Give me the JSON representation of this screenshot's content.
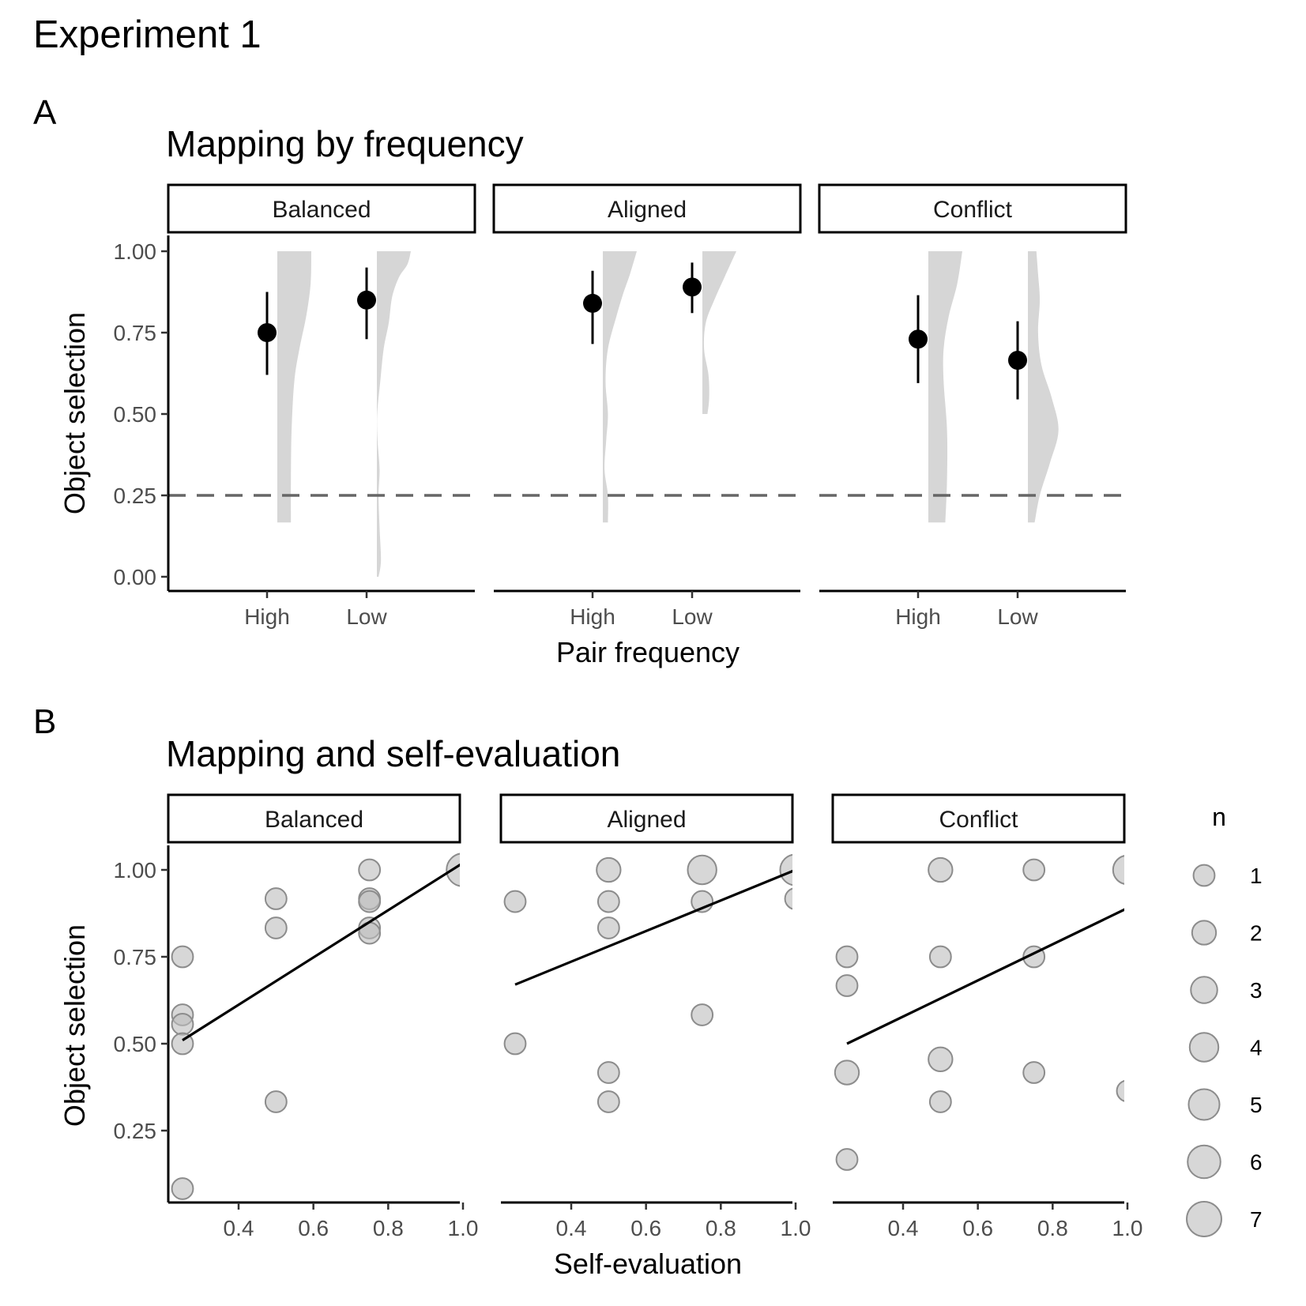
{
  "figure": {
    "title": "Experiment 1",
    "panel_a_tag": "A",
    "panel_b_tag": "B"
  },
  "colors": {
    "point": "#000000",
    "violin": "#d6d6d6",
    "bubble_fill": "#bdbdbd",
    "bubble_stroke": "#8c8c8c",
    "reference_line": "#666666"
  },
  "chart_data": [
    {
      "type": "pointrange+violin",
      "title": "Mapping by frequency",
      "xlabel": "Pair frequency",
      "ylabel": "Object selection",
      "ylim": [
        0,
        1
      ],
      "yticks": [
        "0.00",
        "0.25",
        "0.50",
        "0.75",
        "1.00"
      ],
      "categories": [
        "High",
        "Low"
      ],
      "reference_line": 0.25,
      "facets": [
        {
          "label": "Balanced",
          "points": [
            {
              "category": "High",
              "mean": 0.75,
              "lower": 0.62,
              "upper": 0.875
            },
            {
              "category": "Low",
              "mean": 0.85,
              "lower": 0.73,
              "upper": 0.95
            }
          ],
          "densities": [
            {
              "category": "High",
              "ymin": 0.167,
              "ymax": 1.0,
              "profile": [
                [
                  0.167,
                  0.4
                ],
                [
                  0.3,
                  0.4
                ],
                [
                  0.45,
                  0.42
                ],
                [
                  0.6,
                  0.5
                ],
                [
                  0.7,
                  0.65
                ],
                [
                  0.8,
                  0.85
                ],
                [
                  0.9,
                  0.98
                ],
                [
                  1.0,
                  1.0
                ]
              ]
            },
            {
              "category": "Low",
              "ymin": 0.0,
              "ymax": 1.0,
              "profile": [
                [
                  0.0,
                  0.05
                ],
                [
                  0.05,
                  0.12
                ],
                [
                  0.15,
                  0.08
                ],
                [
                  0.25,
                  0.05
                ],
                [
                  0.33,
                  0.08
                ],
                [
                  0.42,
                  0.02
                ],
                [
                  0.5,
                  0.01
                ],
                [
                  0.6,
                  0.1
                ],
                [
                  0.7,
                  0.2
                ],
                [
                  0.78,
                  0.35
                ],
                [
                  0.86,
                  0.45
                ],
                [
                  0.92,
                  0.65
                ],
                [
                  0.96,
                  0.9
                ],
                [
                  1.0,
                  1.0
                ]
              ]
            }
          ]
        },
        {
          "label": "Aligned",
          "points": [
            {
              "category": "High",
              "mean": 0.84,
              "lower": 0.715,
              "upper": 0.94
            },
            {
              "category": "Low",
              "mean": 0.89,
              "lower": 0.81,
              "upper": 0.965
            }
          ],
          "densities": [
            {
              "category": "High",
              "ymin": 0.167,
              "ymax": 1.0,
              "profile": [
                [
                  0.167,
                  0.15
                ],
                [
                  0.25,
                  0.15
                ],
                [
                  0.33,
                  0.05
                ],
                [
                  0.42,
                  0.1
                ],
                [
                  0.5,
                  0.15
                ],
                [
                  0.6,
                  0.08
                ],
                [
                  0.7,
                  0.15
                ],
                [
                  0.8,
                  0.4
                ],
                [
                  0.87,
                  0.6
                ],
                [
                  0.93,
                  0.8
                ],
                [
                  1.0,
                  1.0
                ]
              ]
            },
            {
              "category": "Low",
              "ymin": 0.5,
              "ymax": 1.0,
              "profile": [
                [
                  0.5,
                  0.15
                ],
                [
                  0.55,
                  0.2
                ],
                [
                  0.62,
                  0.18
                ],
                [
                  0.7,
                  0.05
                ],
                [
                  0.78,
                  0.1
                ],
                [
                  0.85,
                  0.35
                ],
                [
                  0.92,
                  0.65
                ],
                [
                  1.0,
                  1.0
                ]
              ]
            }
          ]
        },
        {
          "label": "Conflict",
          "points": [
            {
              "category": "High",
              "mean": 0.73,
              "lower": 0.595,
              "upper": 0.865
            },
            {
              "category": "Low",
              "mean": 0.665,
              "lower": 0.545,
              "upper": 0.785
            }
          ],
          "densities": [
            {
              "category": "High",
              "ymin": 0.167,
              "ymax": 1.0,
              "profile": [
                [
                  0.167,
                  0.5
                ],
                [
                  0.3,
                  0.55
                ],
                [
                  0.45,
                  0.55
                ],
                [
                  0.6,
                  0.45
                ],
                [
                  0.7,
                  0.45
                ],
                [
                  0.8,
                  0.6
                ],
                [
                  0.9,
                  0.85
                ],
                [
                  1.0,
                  1.0
                ]
              ]
            },
            {
              "category": "Low",
              "ymin": 0.167,
              "ymax": 1.0,
              "profile": [
                [
                  0.167,
                  0.2
                ],
                [
                  0.25,
                  0.35
                ],
                [
                  0.35,
                  0.65
                ],
                [
                  0.45,
                  0.9
                ],
                [
                  0.55,
                  0.7
                ],
                [
                  0.65,
                  0.4
                ],
                [
                  0.75,
                  0.3
                ],
                [
                  0.85,
                  0.35
                ],
                [
                  0.93,
                  0.3
                ],
                [
                  1.0,
                  0.25
                ]
              ]
            }
          ]
        }
      ]
    },
    {
      "type": "scatter+regression",
      "title": "Mapping and self-evaluation",
      "xlabel": "Self-evaluation",
      "ylabel": "Object selection",
      "xlim": [
        0.2,
        1.03
      ],
      "ylim": [
        0.06,
        1.06
      ],
      "xticks": [
        "0.4",
        "0.6",
        "0.8",
        "1.0"
      ],
      "yticks": [
        "0.25",
        "0.50",
        "0.75",
        "1.00"
      ],
      "size_legend": {
        "title": "n",
        "values": [
          "1",
          "2",
          "3",
          "4",
          "5",
          "6",
          "7"
        ]
      },
      "facets": [
        {
          "label": "Balanced",
          "line": {
            "x": [
              0.25,
              1.0
            ],
            "y": [
              0.51,
              1.02
            ]
          },
          "points": [
            {
              "x": 0.25,
              "y": 0.75,
              "n": 1
            },
            {
              "x": 0.25,
              "y": 0.583,
              "n": 1
            },
            {
              "x": 0.25,
              "y": 0.556,
              "n": 1
            },
            {
              "x": 0.25,
              "y": 0.5,
              "n": 1
            },
            {
              "x": 0.25,
              "y": 0.083,
              "n": 1
            },
            {
              "x": 0.5,
              "y": 0.917,
              "n": 1
            },
            {
              "x": 0.5,
              "y": 0.833,
              "n": 1
            },
            {
              "x": 0.5,
              "y": 0.333,
              "n": 1
            },
            {
              "x": 0.75,
              "y": 1.0,
              "n": 1
            },
            {
              "x": 0.75,
              "y": 0.917,
              "n": 1
            },
            {
              "x": 0.75,
              "y": 0.909,
              "n": 1
            },
            {
              "x": 0.75,
              "y": 0.833,
              "n": 1
            },
            {
              "x": 0.75,
              "y": 0.818,
              "n": 1
            },
            {
              "x": 1.0,
              "y": 1.0,
              "n": 6
            }
          ]
        },
        {
          "label": "Aligned",
          "line": {
            "x": [
              0.25,
              1.0
            ],
            "y": [
              0.67,
              1.0
            ]
          },
          "points": [
            {
              "x": 0.25,
              "y": 0.909,
              "n": 1
            },
            {
              "x": 0.25,
              "y": 0.5,
              "n": 1
            },
            {
              "x": 0.5,
              "y": 1.0,
              "n": 2
            },
            {
              "x": 0.5,
              "y": 0.909,
              "n": 1
            },
            {
              "x": 0.5,
              "y": 0.833,
              "n": 1
            },
            {
              "x": 0.5,
              "y": 0.417,
              "n": 1
            },
            {
              "x": 0.5,
              "y": 0.333,
              "n": 1
            },
            {
              "x": 0.75,
              "y": 1.0,
              "n": 4
            },
            {
              "x": 0.75,
              "y": 0.909,
              "n": 1
            },
            {
              "x": 0.75,
              "y": 0.583,
              "n": 1
            },
            {
              "x": 1.0,
              "y": 1.0,
              "n": 5
            },
            {
              "x": 1.0,
              "y": 0.917,
              "n": 1
            }
          ]
        },
        {
          "label": "Conflict",
          "line": {
            "x": [
              0.25,
              1.0
            ],
            "y": [
              0.5,
              0.89
            ]
          },
          "points": [
            {
              "x": 0.25,
              "y": 0.75,
              "n": 1
            },
            {
              "x": 0.25,
              "y": 0.667,
              "n": 1
            },
            {
              "x": 0.25,
              "y": 0.417,
              "n": 2
            },
            {
              "x": 0.25,
              "y": 0.167,
              "n": 1
            },
            {
              "x": 0.5,
              "y": 1.0,
              "n": 2
            },
            {
              "x": 0.5,
              "y": 0.75,
              "n": 1
            },
            {
              "x": 0.5,
              "y": 0.455,
              "n": 2
            },
            {
              "x": 0.5,
              "y": 0.333,
              "n": 1
            },
            {
              "x": 0.75,
              "y": 1.0,
              "n": 1
            },
            {
              "x": 0.75,
              "y": 0.75,
              "n": 1
            },
            {
              "x": 0.75,
              "y": 0.417,
              "n": 1
            },
            {
              "x": 1.0,
              "y": 1.0,
              "n": 4
            },
            {
              "x": 1.0,
              "y": 0.364,
              "n": 1
            }
          ]
        }
      ]
    }
  ]
}
